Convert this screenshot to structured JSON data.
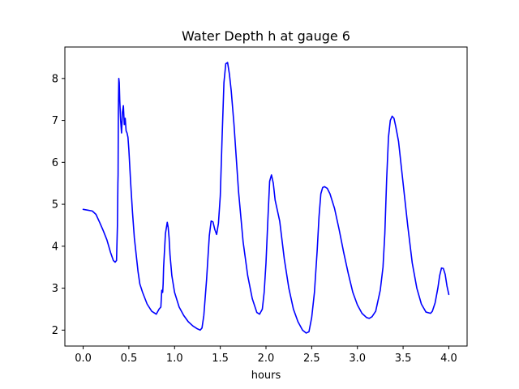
{
  "chart_data": {
    "type": "line",
    "title": "Water Depth h at gauge 6",
    "xlabel": "hours",
    "ylabel": "",
    "xlim": [
      -0.2,
      4.2
    ],
    "ylim": [
      1.62,
      8.75
    ],
    "xticks": [
      0.0,
      0.5,
      1.0,
      1.5,
      2.0,
      2.5,
      3.0,
      3.5,
      4.0
    ],
    "xtick_labels": [
      "0.0",
      "0.5",
      "1.0",
      "1.5",
      "2.0",
      "2.5",
      "3.0",
      "3.5",
      "4.0"
    ],
    "yticks": [
      2,
      3,
      4,
      5,
      6,
      7,
      8
    ],
    "ytick_labels": [
      "2",
      "3",
      "4",
      "5",
      "6",
      "7",
      "8"
    ],
    "grid": false,
    "series": [
      {
        "color": "#0000ff",
        "x": [
          0.0,
          0.05,
          0.1,
          0.14,
          0.18,
          0.22,
          0.26,
          0.3,
          0.33,
          0.35,
          0.365,
          0.375,
          0.38,
          0.382,
          0.385,
          0.39,
          0.395,
          0.4,
          0.41,
          0.42,
          0.43,
          0.44,
          0.45,
          0.46,
          0.47,
          0.48,
          0.49,
          0.5,
          0.52,
          0.54,
          0.56,
          0.58,
          0.6,
          0.62,
          0.65,
          0.7,
          0.75,
          0.8,
          0.83,
          0.85,
          0.86,
          0.87,
          0.875,
          0.88,
          0.9,
          0.92,
          0.93,
          0.94,
          0.95,
          0.97,
          1.0,
          1.05,
          1.1,
          1.15,
          1.2,
          1.25,
          1.28,
          1.3,
          1.32,
          1.35,
          1.38,
          1.4,
          1.42,
          1.44,
          1.46,
          1.48,
          1.5,
          1.52,
          1.54,
          1.56,
          1.58,
          1.6,
          1.62,
          1.65,
          1.7,
          1.75,
          1.8,
          1.85,
          1.9,
          1.93,
          1.96,
          1.98,
          2.0,
          2.02,
          2.04,
          2.06,
          2.08,
          2.1,
          2.12,
          2.15,
          2.2,
          2.25,
          2.3,
          2.35,
          2.4,
          2.44,
          2.47,
          2.5,
          2.53,
          2.56,
          2.58,
          2.6,
          2.62,
          2.64,
          2.67,
          2.7,
          2.75,
          2.8,
          2.85,
          2.9,
          2.95,
          3.0,
          3.05,
          3.1,
          3.13,
          3.16,
          3.2,
          3.25,
          3.28,
          3.3,
          3.32,
          3.34,
          3.36,
          3.38,
          3.4,
          3.42,
          3.45,
          3.5,
          3.55,
          3.6,
          3.65,
          3.7,
          3.75,
          3.8,
          3.82,
          3.85,
          3.88,
          3.9,
          3.92,
          3.94,
          3.96,
          3.98,
          4.0
        ],
        "y": [
          4.88,
          4.86,
          4.84,
          4.76,
          4.57,
          4.37,
          4.15,
          3.85,
          3.66,
          3.62,
          3.66,
          4.5,
          5.5,
          5.7,
          7.2,
          8.0,
          7.9,
          7.5,
          7.0,
          6.7,
          7.2,
          7.35,
          6.9,
          7.05,
          6.75,
          6.7,
          6.6,
          6.3,
          5.5,
          4.8,
          4.2,
          3.8,
          3.4,
          3.1,
          2.9,
          2.62,
          2.45,
          2.38,
          2.5,
          2.55,
          2.95,
          2.9,
          3.1,
          3.5,
          4.3,
          4.57,
          4.45,
          4.2,
          3.8,
          3.3,
          2.9,
          2.55,
          2.35,
          2.2,
          2.1,
          2.03,
          2.0,
          2.05,
          2.35,
          3.2,
          4.25,
          4.6,
          4.58,
          4.4,
          4.28,
          4.55,
          5.2,
          6.6,
          7.9,
          8.35,
          8.38,
          8.1,
          7.7,
          6.9,
          5.3,
          4.1,
          3.3,
          2.75,
          2.42,
          2.38,
          2.5,
          2.9,
          3.6,
          4.6,
          5.55,
          5.7,
          5.5,
          5.1,
          4.9,
          4.6,
          3.7,
          3.0,
          2.5,
          2.2,
          2.0,
          1.93,
          1.96,
          2.3,
          2.9,
          3.9,
          4.7,
          5.25,
          5.4,
          5.42,
          5.38,
          5.25,
          4.9,
          4.4,
          3.85,
          3.35,
          2.9,
          2.6,
          2.4,
          2.3,
          2.28,
          2.32,
          2.45,
          2.95,
          3.5,
          4.3,
          5.6,
          6.6,
          7.0,
          7.1,
          7.05,
          6.85,
          6.5,
          5.5,
          4.5,
          3.6,
          3.0,
          2.62,
          2.43,
          2.4,
          2.45,
          2.65,
          3.0,
          3.3,
          3.48,
          3.47,
          3.33,
          3.05,
          2.85
        ]
      }
    ]
  }
}
